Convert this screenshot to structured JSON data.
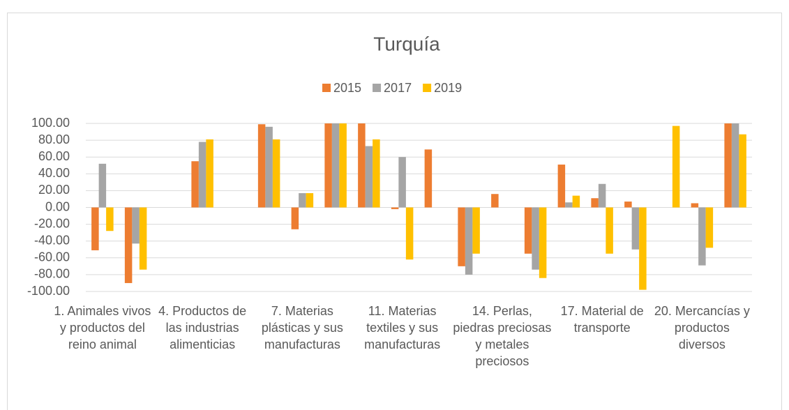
{
  "chart_data": {
    "type": "bar",
    "title": "Turquía",
    "categories": [
      "1. Animales vivos y productos del reino animal",
      null,
      null,
      "4. Productos de las industrias alimenticias",
      null,
      null,
      "7. Materias plásticas y sus manufacturas",
      null,
      null,
      "11. Materias textiles y sus manufacturas",
      null,
      null,
      "14. Perlas, piedras preciosas y metales preciosos",
      null,
      null,
      "17. Material de transporte",
      null,
      null,
      "20. Mercancías y productos diversos",
      null
    ],
    "series": [
      {
        "name": "2015",
        "color": "#ed7d31",
        "values": [
          -51,
          -90,
          null,
          55,
          null,
          99,
          -26,
          100,
          100,
          -2,
          69,
          -70,
          16,
          -55,
          51,
          11,
          7,
          null,
          5,
          100
        ]
      },
      {
        "name": "2017",
        "color": "#a5a5a5",
        "values": [
          52,
          -43,
          null,
          78,
          null,
          96,
          17,
          100,
          73,
          60,
          null,
          -80,
          null,
          -74,
          6,
          28,
          -50,
          null,
          -69,
          100
        ]
      },
      {
        "name": "2019",
        "color": "#ffc000",
        "values": [
          -28,
          -74,
          null,
          81,
          null,
          81,
          17,
          100,
          81,
          -62,
          null,
          -55,
          null,
          -84,
          14,
          -55,
          -98,
          97,
          -48,
          87
        ]
      }
    ],
    "ylim": [
      -100,
      100
    ],
    "yticks": [
      {
        "value": 100,
        "label": "100.00"
      },
      {
        "value": 80,
        "label": "80.00"
      },
      {
        "value": 60,
        "label": "60.00"
      },
      {
        "value": 40,
        "label": "40.00"
      },
      {
        "value": 20,
        "label": "20.00"
      },
      {
        "value": 0,
        "label": "0.00"
      },
      {
        "value": -20,
        "label": "-20.00"
      },
      {
        "value": -40,
        "label": "-40.00"
      },
      {
        "value": -60,
        "label": "-60.00"
      },
      {
        "value": -80,
        "label": "-80.00"
      },
      {
        "value": -100,
        "label": "-100.00"
      }
    ],
    "grid": true,
    "legend": "top"
  }
}
